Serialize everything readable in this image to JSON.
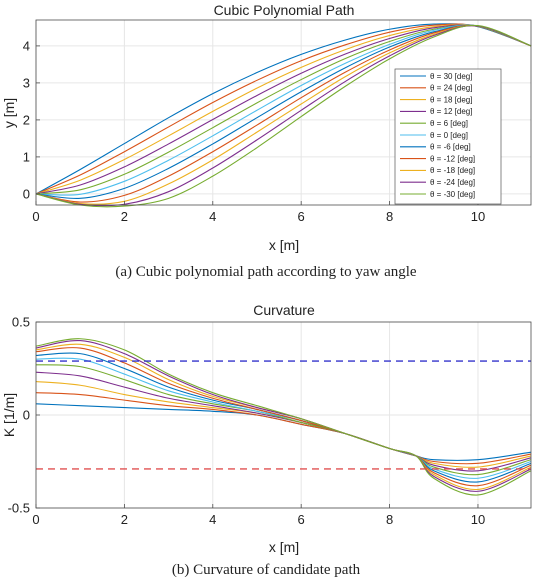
{
  "colors": {
    "series": [
      "#0072BD",
      "#D95319",
      "#EDB120",
      "#7E2F8E",
      "#77AC30",
      "#4DBEEE",
      "#0072BD",
      "#D95319",
      "#EDB120",
      "#7E2F8E",
      "#77AC30"
    ],
    "limit_upper": "#3333CC",
    "limit_lower": "#E05050",
    "grid": "#e6e6e6",
    "axis": "#4d4d4d"
  },
  "chart_data": [
    {
      "type": "line",
      "title": "Cubic Polynomial Path",
      "caption": "(a) Cubic polynomial path according to yaw angle",
      "xlabel": "x [m]",
      "ylabel": "y [m]",
      "xlim": [
        0,
        11.2
      ],
      "ylim": [
        -0.3,
        4.7
      ],
      "xticks": [
        0,
        2,
        4,
        6,
        8,
        10
      ],
      "yticks": [
        0,
        1,
        2,
        3,
        4
      ],
      "grid": true,
      "legend_position": "right",
      "end_point": [
        11.2,
        4.0
      ],
      "theta_deg": [
        30,
        24,
        18,
        12,
        6,
        0,
        -6,
        -12,
        -18,
        -24,
        -30
      ],
      "series": [
        {
          "name": "θ = 30 [deg]",
          "x": [
            0,
            1,
            2,
            3,
            4,
            5,
            6,
            7,
            8,
            9,
            10,
            11.2
          ],
          "y": [
            0,
            0.66,
            1.36,
            2.06,
            2.71,
            3.28,
            3.77,
            4.16,
            4.45,
            4.59,
            4.52,
            4.0
          ]
        },
        {
          "name": "θ = 24 [deg]",
          "x": [
            0,
            1,
            2,
            3,
            4,
            5,
            6,
            7,
            8,
            9,
            10,
            11.2
          ],
          "y": [
            0,
            0.51,
            1.14,
            1.81,
            2.47,
            3.07,
            3.6,
            4.03,
            4.37,
            4.56,
            4.53,
            4.0
          ]
        },
        {
          "name": "θ = 18 [deg]",
          "x": [
            0,
            1,
            2,
            3,
            4,
            5,
            6,
            7,
            8,
            9,
            10,
            11.2
          ],
          "y": [
            0,
            0.37,
            0.93,
            1.57,
            2.23,
            2.86,
            3.42,
            3.9,
            4.28,
            4.52,
            4.53,
            4.0
          ]
        },
        {
          "name": "θ = 12 [deg]",
          "x": [
            0,
            1,
            2,
            3,
            4,
            5,
            6,
            7,
            8,
            9,
            10,
            11.2
          ],
          "y": [
            0,
            0.24,
            0.73,
            1.35,
            2.01,
            2.66,
            3.26,
            3.78,
            4.2,
            4.49,
            4.53,
            4.0
          ]
        },
        {
          "name": "θ = 6 [deg]",
          "x": [
            0,
            1,
            2,
            3,
            4,
            5,
            6,
            7,
            8,
            9,
            10,
            11.2
          ],
          "y": [
            0,
            0.11,
            0.53,
            1.13,
            1.79,
            2.46,
            3.09,
            3.66,
            4.12,
            4.45,
            4.53,
            4.0
          ]
        },
        {
          "name": "θ = 0 [deg]",
          "x": [
            0,
            1,
            2,
            3,
            4,
            5,
            6,
            7,
            8,
            9,
            10,
            11.2
          ],
          "y": [
            0,
            -0.01,
            0.34,
            0.91,
            1.57,
            2.26,
            2.93,
            3.53,
            4.04,
            4.42,
            4.54,
            4.0
          ]
        },
        {
          "name": "θ = -6 [deg]",
          "x": [
            0,
            1,
            2,
            3,
            4,
            5,
            6,
            7,
            8,
            9,
            10,
            11.2
          ],
          "y": [
            0,
            -0.12,
            0.15,
            0.69,
            1.35,
            2.06,
            2.76,
            3.41,
            3.97,
            4.38,
            4.54,
            4.0
          ]
        },
        {
          "name": "θ = -12 [deg]",
          "x": [
            0,
            1,
            2,
            3,
            4,
            5,
            6,
            7,
            8,
            9,
            10,
            11.2
          ],
          "y": [
            0,
            -0.22,
            -0.04,
            0.48,
            1.14,
            1.86,
            2.6,
            3.29,
            3.89,
            4.35,
            4.54,
            4.0
          ]
        },
        {
          "name": "θ = -18 [deg]",
          "x": [
            0,
            1,
            2,
            3,
            4,
            5,
            6,
            7,
            8,
            9,
            10,
            11.2
          ],
          "y": [
            0,
            -0.26,
            -0.2,
            0.27,
            0.92,
            1.67,
            2.43,
            3.17,
            3.81,
            4.31,
            4.54,
            4.0
          ]
        },
        {
          "name": "θ = -24 [deg]",
          "x": [
            0,
            1,
            2,
            3,
            4,
            5,
            6,
            7,
            8,
            9,
            10,
            11.2
          ],
          "y": [
            0,
            -0.28,
            -0.28,
            0.06,
            0.7,
            1.46,
            2.26,
            3.04,
            3.73,
            4.28,
            4.54,
            4.0
          ]
        },
        {
          "name": "θ = -30 [deg]",
          "x": [
            0,
            1,
            2,
            3,
            4,
            5,
            6,
            7,
            8,
            9,
            10,
            11.2
          ],
          "y": [
            0,
            -0.3,
            -0.33,
            -0.12,
            0.48,
            1.25,
            2.09,
            2.91,
            3.65,
            4.24,
            4.55,
            4.0
          ]
        }
      ]
    },
    {
      "type": "line",
      "title": "Curvature",
      "caption": "(b) Curvature of candidate path",
      "xlabel": "x [m]",
      "ylabel": "K [1/m]",
      "xlim": [
        0,
        11.2
      ],
      "ylim": [
        -0.5,
        0.5
      ],
      "xticks": [
        0,
        2,
        4,
        6,
        8,
        10
      ],
      "yticks": [
        -0.5,
        0,
        0.5
      ],
      "grid": true,
      "limits": [
        0.29,
        -0.29
      ],
      "series": [
        {
          "x": [
            0,
            1,
            2,
            3,
            4,
            5,
            6,
            7,
            8,
            8.6,
            9,
            10,
            11.2
          ],
          "y": [
            0.06,
            0.05,
            0.04,
            0.03,
            0.02,
            0.0,
            -0.05,
            -0.1,
            -0.18,
            -0.22,
            -0.24,
            -0.24,
            -0.2
          ]
        },
        {
          "x": [
            0,
            1,
            2,
            3,
            4,
            5,
            6,
            7,
            8,
            8.6,
            9,
            10,
            11.2
          ],
          "y": [
            0.12,
            0.11,
            0.08,
            0.05,
            0.03,
            0.0,
            -0.05,
            -0.1,
            -0.18,
            -0.22,
            -0.25,
            -0.26,
            -0.21
          ]
        },
        {
          "x": [
            0,
            1,
            2,
            3,
            4,
            5,
            6,
            7,
            8,
            8.6,
            9,
            10,
            11.2
          ],
          "y": [
            0.18,
            0.16,
            0.11,
            0.07,
            0.04,
            0.01,
            -0.04,
            -0.1,
            -0.18,
            -0.22,
            -0.26,
            -0.28,
            -0.22
          ]
        },
        {
          "x": [
            0,
            1,
            2,
            3,
            4,
            5,
            6,
            7,
            8,
            8.6,
            9,
            10,
            11.2
          ],
          "y": [
            0.23,
            0.21,
            0.15,
            0.09,
            0.05,
            0.01,
            -0.04,
            -0.1,
            -0.18,
            -0.22,
            -0.27,
            -0.3,
            -0.23
          ]
        },
        {
          "x": [
            0,
            1,
            2,
            3,
            4,
            5,
            6,
            7,
            8,
            8.6,
            9,
            10,
            11.2
          ],
          "y": [
            0.27,
            0.26,
            0.19,
            0.11,
            0.06,
            0.02,
            -0.04,
            -0.1,
            -0.18,
            -0.22,
            -0.28,
            -0.32,
            -0.24
          ]
        },
        {
          "x": [
            0,
            1,
            2,
            3,
            4,
            5,
            6,
            7,
            8,
            8.6,
            9,
            10,
            11.2
          ],
          "y": [
            0.3,
            0.3,
            0.22,
            0.13,
            0.07,
            0.02,
            -0.03,
            -0.1,
            -0.18,
            -0.22,
            -0.29,
            -0.34,
            -0.25
          ]
        },
        {
          "x": [
            0,
            1,
            2,
            3,
            4,
            5,
            6,
            7,
            8,
            8.6,
            9,
            10,
            11.2
          ],
          "y": [
            0.32,
            0.33,
            0.25,
            0.15,
            0.08,
            0.03,
            -0.03,
            -0.1,
            -0.18,
            -0.22,
            -0.3,
            -0.36,
            -0.26
          ]
        },
        {
          "x": [
            0,
            1,
            2,
            3,
            4,
            5,
            6,
            7,
            8,
            8.6,
            9,
            10,
            11.2
          ],
          "y": [
            0.34,
            0.36,
            0.28,
            0.17,
            0.09,
            0.03,
            -0.03,
            -0.1,
            -0.18,
            -0.22,
            -0.31,
            -0.38,
            -0.27
          ]
        },
        {
          "x": [
            0,
            1,
            2,
            3,
            4,
            5,
            6,
            7,
            8,
            8.6,
            9,
            10,
            11.2
          ],
          "y": [
            0.35,
            0.38,
            0.31,
            0.19,
            0.1,
            0.04,
            -0.02,
            -0.1,
            -0.18,
            -0.22,
            -0.32,
            -0.4,
            -0.28
          ]
        },
        {
          "x": [
            0,
            1,
            2,
            3,
            4,
            5,
            6,
            7,
            8,
            8.6,
            9,
            10,
            11.2
          ],
          "y": [
            0.36,
            0.4,
            0.33,
            0.21,
            0.11,
            0.04,
            -0.02,
            -0.1,
            -0.18,
            -0.22,
            -0.33,
            -0.41,
            -0.29
          ]
        },
        {
          "x": [
            0,
            1,
            2,
            3,
            4,
            5,
            6,
            7,
            8,
            8.6,
            9,
            10,
            11.2
          ],
          "y": [
            0.37,
            0.41,
            0.35,
            0.22,
            0.12,
            0.05,
            -0.02,
            -0.1,
            -0.18,
            -0.22,
            -0.34,
            -0.43,
            -0.3
          ]
        }
      ]
    }
  ]
}
